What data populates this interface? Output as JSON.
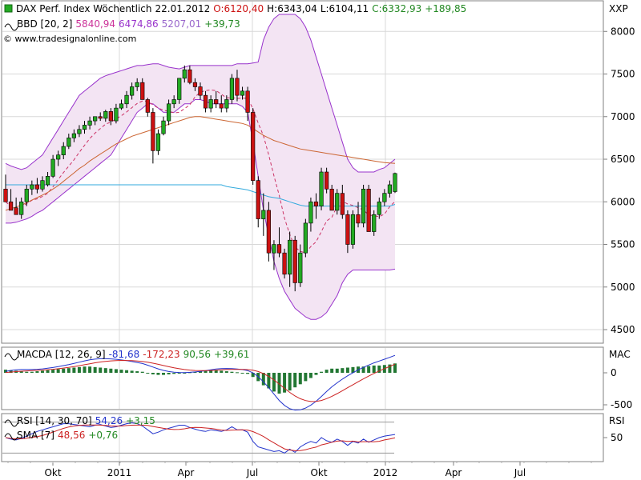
{
  "header": {
    "symbol": "DAX Perf. Index Wöchentlich",
    "date": "22.01.2012",
    "open": "O:6120,40",
    "high": "H:6343,04",
    "low": "L:6104,11",
    "close": "C:6332,93",
    "change": "+189,85",
    "ticker": "XXP"
  },
  "indicators": {
    "bbd": {
      "label": "BBD [20, 2]",
      "v1": "5840,94",
      "v2": "6474,86",
      "v3": "5207,01",
      "v4": "+39,73"
    },
    "watermark": "© www.tradesignalonline.com",
    "macd": {
      "label": "MACDA [12, 26, 9]",
      "v1": "-81,68",
      "v2": "-172,23",
      "v3": "90,56",
      "v4": "+39,61",
      "tag": "MAC"
    },
    "rsi": {
      "label": "RSI [14, 30, 70]",
      "v1": "54,26",
      "v2": "+3,15",
      "tag": "RSI"
    },
    "sma": {
      "label": "SMA [7]",
      "v1": "48,56",
      "v2": "+0,76"
    }
  },
  "colors": {
    "up": "#22aa22",
    "down": "#cc1111",
    "band": "#9933cc",
    "bandFill": "#f3e4f3",
    "ma200": "#33aadd",
    "ma100": "#cc6633",
    "macdLine": "#2233cc",
    "signal": "#cc2222",
    "hist": "#227733",
    "bbMid": "#cc3366"
  },
  "chart_data": {
    "type": "candlestick",
    "x_ticks": [
      "Okt",
      "2011",
      "Apr",
      "Jul",
      "Okt",
      "2012",
      "Apr",
      "Jul"
    ],
    "y_ticks": [
      "8000",
      "7500",
      "7000",
      "6500",
      "6000",
      "5500",
      "5000",
      "4500"
    ],
    "ylim": [
      4350,
      8350
    ],
    "candles": [
      [
        6150,
        6320,
        6000,
        6000
      ],
      [
        6000,
        6150,
        5900,
        5900
      ],
      [
        5930,
        6050,
        5850,
        5850
      ],
      [
        5850,
        6050,
        5800,
        6000
      ],
      [
        6000,
        6200,
        5950,
        6150
      ],
      [
        6150,
        6250,
        6080,
        6200
      ],
      [
        6200,
        6280,
        6100,
        6150
      ],
      [
        6150,
        6300,
        6120,
        6250
      ],
      [
        6200,
        6350,
        6180,
        6300
      ],
      [
        6300,
        6550,
        6280,
        6500
      ],
      [
        6500,
        6600,
        6420,
        6550
      ],
      [
        6550,
        6700,
        6500,
        6650
      ],
      [
        6650,
        6800,
        6620,
        6750
      ],
      [
        6750,
        6850,
        6700,
        6800
      ],
      [
        6800,
        6900,
        6760,
        6850
      ],
      [
        6850,
        6950,
        6800,
        6900
      ],
      [
        6900,
        7000,
        6850,
        6950
      ],
      [
        6950,
        7000,
        6900,
        7000
      ],
      [
        7000,
        7050,
        6950,
        6980
      ],
      [
        6980,
        7080,
        6940,
        7060
      ],
      [
        7060,
        7100,
        6900,
        6950
      ],
      [
        6950,
        7150,
        6920,
        7100
      ],
      [
        7100,
        7200,
        7080,
        7150
      ],
      [
        7150,
        7300,
        7100,
        7250
      ],
      [
        7250,
        7400,
        7200,
        7350
      ],
      [
        7350,
        7450,
        7300,
        7400
      ],
      [
        7400,
        7450,
        7200,
        7200
      ],
      [
        7200,
        7220,
        7000,
        7050
      ],
      [
        7050,
        7100,
        6450,
        6600
      ],
      [
        6600,
        6850,
        6550,
        6800
      ],
      [
        6800,
        7000,
        6780,
        6950
      ],
      [
        6950,
        7200,
        6900,
        7150
      ],
      [
        7150,
        7250,
        7100,
        7200
      ],
      [
        7200,
        7450,
        7150,
        7450
      ],
      [
        7450,
        7600,
        7400,
        7550
      ],
      [
        7550,
        7600,
        7380,
        7400
      ],
      [
        7400,
        7450,
        7300,
        7350
      ],
      [
        7350,
        7400,
        7200,
        7250
      ],
      [
        7250,
        7300,
        7050,
        7100
      ],
      [
        7100,
        7250,
        7050,
        7200
      ],
      [
        7200,
        7300,
        7100,
        7150
      ],
      [
        7150,
        7250,
        7050,
        7100
      ],
      [
        7100,
        7250,
        7050,
        7200
      ],
      [
        7200,
        7500,
        7150,
        7450
      ],
      [
        7450,
        7550,
        7180,
        7250
      ],
      [
        7250,
        7350,
        7200,
        7300
      ],
      [
        7300,
        7350,
        6950,
        7050
      ],
      [
        7050,
        7100,
        6200,
        6250
      ],
      [
        6250,
        6300,
        5700,
        5800
      ],
      [
        5800,
        6100,
        5600,
        5900
      ],
      [
        5900,
        6000,
        5300,
        5400
      ],
      [
        5400,
        5550,
        5200,
        5500
      ],
      [
        5500,
        5700,
        5350,
        5400
      ],
      [
        5400,
        5450,
        5100,
        5150
      ],
      [
        5150,
        5650,
        5000,
        5550
      ],
      [
        5550,
        5600,
        4950,
        5050
      ],
      [
        5050,
        5500,
        5000,
        5400
      ],
      [
        5400,
        5800,
        5350,
        5750
      ],
      [
        5750,
        6050,
        5650,
        6000
      ],
      [
        6000,
        6100,
        5800,
        5950
      ],
      [
        5950,
        6400,
        5900,
        6350
      ],
      [
        6350,
        6400,
        6100,
        6150
      ],
      [
        6150,
        6200,
        5900,
        5900
      ],
      [
        5900,
        6150,
        5850,
        6100
      ],
      [
        6100,
        6200,
        5800,
        5850
      ],
      [
        5850,
        5900,
        5400,
        5500
      ],
      [
        5500,
        5900,
        5450,
        5850
      ],
      [
        5850,
        6000,
        5700,
        5750
      ],
      [
        5750,
        6200,
        5700,
        6150
      ],
      [
        6150,
        6200,
        5650,
        5650
      ],
      [
        5650,
        5900,
        5600,
        5850
      ],
      [
        5850,
        6050,
        5800,
        6000
      ],
      [
        6000,
        6150,
        5950,
        6100
      ],
      [
        6100,
        6250,
        6050,
        6200
      ],
      [
        6120,
        6343,
        6104,
        6333
      ]
    ],
    "upper_band": [
      6450,
      6420,
      6400,
      6380,
      6400,
      6450,
      6500,
      6550,
      6650,
      6750,
      6850,
      6950,
      7050,
      7150,
      7250,
      7300,
      7350,
      7400,
      7450,
      7480,
      7500,
      7520,
      7540,
      7560,
      7580,
      7600,
      7600,
      7610,
      7620,
      7620,
      7600,
      7580,
      7570,
      7560,
      7580,
      7600,
      7600,
      7600,
      7600,
      7600,
      7600,
      7600,
      7600,
      7600,
      7620,
      7620,
      7620,
      7630,
      7640,
      7900,
      8050,
      8150,
      8200,
      8200,
      8200,
      8200,
      8150,
      8050,
      7900,
      7700,
      7500,
      7300,
      7100,
      6900,
      6700,
      6500,
      6400,
      6350,
      6350,
      6350,
      6350,
      6380,
      6400,
      6450,
      6500
    ],
    "lower_band": [
      5750,
      5750,
      5760,
      5780,
      5800,
      5830,
      5870,
      5900,
      5950,
      6000,
      6050,
      6100,
      6150,
      6200,
      6250,
      6300,
      6350,
      6400,
      6450,
      6500,
      6550,
      6650,
      6750,
      6850,
      6950,
      7050,
      7100,
      7150,
      7150,
      7100,
      7050,
      7050,
      7050,
      7100,
      7150,
      7150,
      7200,
      7200,
      7180,
      7150,
      7150,
      7150,
      7150,
      7150,
      7150,
      7120,
      7050,
      6700,
      6300,
      5900,
      5600,
      5300,
      5100,
      4950,
      4850,
      4750,
      4700,
      4650,
      4620,
      4620,
      4650,
      4700,
      4800,
      4900,
      5050,
      5150,
      5200,
      5200,
      5200,
      5200,
      5200,
      5200,
      5200,
      5200,
      5210
    ],
    "ma200": [
      6200,
      6200,
      6200,
      6200,
      6200,
      6200,
      6200,
      6200,
      6200,
      6200,
      6200,
      6200,
      6200,
      6200,
      6200,
      6200,
      6200,
      6200,
      6200,
      6200,
      6200,
      6200,
      6200,
      6200,
      6200,
      6200,
      6200,
      6200,
      6200,
      6200,
      6200,
      6200,
      6200,
      6200,
      6200,
      6200,
      6200,
      6200,
      6200,
      6200,
      6200,
      6200,
      6180,
      6170,
      6160,
      6150,
      6140,
      6120,
      6100,
      6080,
      6060,
      6050,
      6040,
      6020,
      6000,
      5980,
      5960,
      5950,
      5950,
      5950,
      5950,
      5950,
      5950,
      5950,
      5950,
      5950,
      5950,
      5950,
      5950,
      5950,
      5950,
      5950,
      5950,
      5950,
      5970
    ],
    "ma100": [
      5900,
      5920,
      5940,
      5960,
      5990,
      6020,
      6050,
      6080,
      6110,
      6150,
      6190,
      6240,
      6290,
      6340,
      6390,
      6430,
      6480,
      6520,
      6560,
      6600,
      6640,
      6680,
      6710,
      6740,
      6770,
      6790,
      6810,
      6830,
      6850,
      6870,
      6890,
      6910,
      6930,
      6950,
      6970,
      6990,
      7000,
      7000,
      6990,
      6980,
      6970,
      6960,
      6950,
      6940,
      6930,
      6920,
      6900,
      6860,
      6820,
      6780,
      6750,
      6720,
      6700,
      6680,
      6660,
      6640,
      6620,
      6610,
      6600,
      6590,
      6580,
      6570,
      6560,
      6550,
      6540,
      6530,
      6520,
      6510,
      6500,
      6490,
      6480,
      6470,
      6460,
      6455,
      6450
    ],
    "macd_hist": [
      30,
      25,
      20,
      15,
      10,
      10,
      15,
      20,
      25,
      30,
      35,
      40,
      45,
      50,
      55,
      60,
      60,
      55,
      50,
      45,
      40,
      35,
      30,
      25,
      20,
      15,
      10,
      -5,
      -15,
      -20,
      -20,
      -15,
      -10,
      -5,
      0,
      5,
      10,
      15,
      20,
      25,
      25,
      20,
      15,
      10,
      5,
      0,
      -10,
      -40,
      -80,
      -120,
      -150,
      -180,
      -200,
      -190,
      -170,
      -140,
      -110,
      -80,
      -50,
      -20,
      10,
      30,
      40,
      40,
      45,
      50,
      55,
      60,
      60,
      65,
      70,
      70,
      75,
      80,
      90
    ],
    "rsi": [
      50,
      48,
      47,
      49,
      52,
      55,
      58,
      60,
      62,
      64,
      66,
      68,
      68,
      67,
      66,
      65,
      64,
      66,
      67,
      65,
      63,
      64,
      66,
      68,
      69,
      68,
      65,
      60,
      55,
      57,
      60,
      62,
      64,
      66,
      66,
      63,
      61,
      59,
      58,
      60,
      59,
      58,
      60,
      64,
      60,
      60,
      57,
      45,
      38,
      36,
      34,
      32,
      33,
      30,
      35,
      31,
      38,
      42,
      45,
      43,
      50,
      46,
      44,
      48,
      45,
      40,
      45,
      43,
      48,
      44,
      47,
      50,
      52,
      53,
      54
    ]
  }
}
